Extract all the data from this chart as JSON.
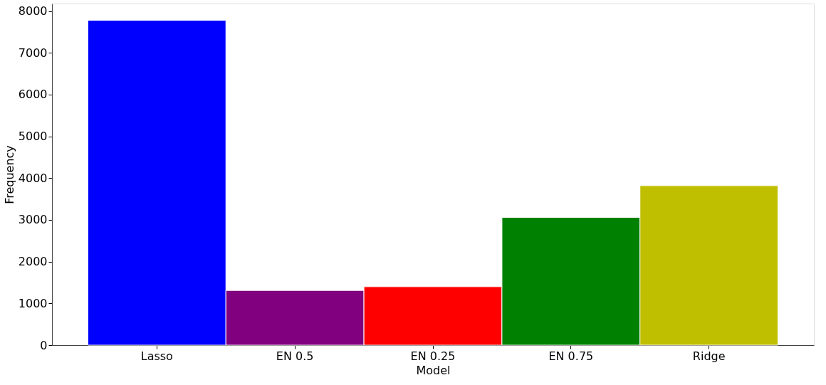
{
  "chart_data": {
    "type": "bar",
    "xlabel": "Model",
    "ylabel": "Frequency",
    "categories": [
      "Lasso",
      "EN 0.5",
      "EN 0.25",
      "EN 0.75",
      "Ridge"
    ],
    "values": [
      7780,
      1310,
      1400,
      3060,
      3820
    ],
    "colors": [
      "#0000ff",
      "#800080",
      "#ff0000",
      "#008000",
      "#bfbf00"
    ],
    "ylim": [
      0,
      8180
    ],
    "yticks": [
      0,
      1000,
      2000,
      3000,
      4000,
      5000,
      6000,
      7000,
      8000
    ],
    "grid": false,
    "legend": false
  }
}
